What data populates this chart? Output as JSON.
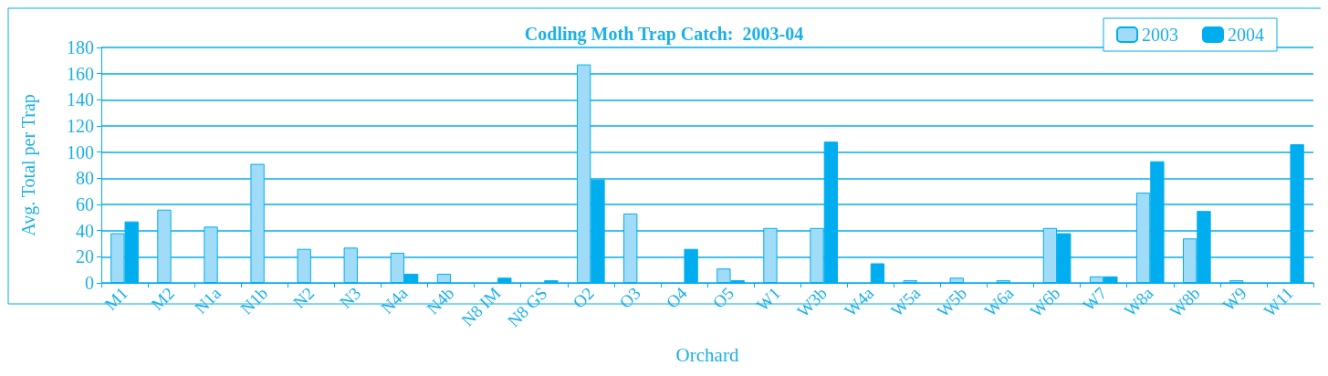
{
  "chart_data": {
    "type": "bar",
    "title": "Codling Moth Trap Catch:  2003-04",
    "xlabel": "Orchard",
    "ylabel": "Avg. Total per Trap",
    "categories": [
      "M1",
      "M2",
      "N1a",
      "N1b",
      "N2",
      "N3",
      "N4a",
      "N4b",
      "N8 IM",
      "N8 GS",
      "O2",
      "O3",
      "O4",
      "O5",
      "W1",
      "W3b",
      "W4a",
      "W5a",
      "W5b",
      "W6a",
      "W6b",
      "W7",
      "W8a",
      "W8b",
      "W9",
      "W11"
    ],
    "series": [
      {
        "name": "2003",
        "color": "#a0dcf7",
        "values": [
          38,
          56,
          43,
          91,
          26,
          27,
          23,
          7,
          null,
          null,
          167,
          53,
          null,
          11,
          42,
          42,
          null,
          2,
          4,
          2,
          42,
          5,
          69,
          34,
          2,
          null
        ]
      },
      {
        "name": "2004",
        "color": "#00aeef",
        "values": [
          47,
          null,
          null,
          null,
          null,
          null,
          7,
          null,
          4,
          2,
          79,
          null,
          26,
          2,
          null,
          108,
          15,
          null,
          null,
          null,
          38,
          5,
          93,
          55,
          null,
          106
        ]
      }
    ],
    "ylim": [
      0,
      180
    ],
    "yticks": [
      0,
      20,
      40,
      60,
      80,
      100,
      120,
      140,
      160,
      180
    ],
    "grid": "y",
    "legend": "top right"
  }
}
